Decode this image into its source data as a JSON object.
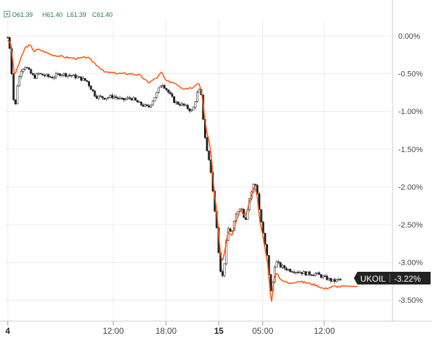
{
  "header": {
    "toggle_icon": "plus-box-icon",
    "open": "O61.39",
    "high": "H61.40",
    "low": "L61.39",
    "close": "C61.40"
  },
  "colors": {
    "compare_line": "#ff5a14",
    "candle_up": "#ffffff",
    "candle_down": "#1f1f1f",
    "candle_wick": "#2f2f2f",
    "tag_bg": "#222222",
    "grid": "#ececec",
    "ohlc_text": "#2a7a3a"
  },
  "tag": {
    "symbol": "UKOIL",
    "value": "-3.22%"
  },
  "chart_data": {
    "type": "line",
    "ylim": [
      -3.5,
      0.0
    ],
    "grid": true,
    "yticks": [
      "0.00%",
      "-0.50%",
      "-1.00%",
      "-1.50%",
      "-2.00%",
      "-2.50%",
      "-3.00%",
      "-3.50%"
    ],
    "ytick_values": [
      0,
      -0.5,
      -1.0,
      -1.5,
      -2.0,
      -2.5,
      -3.0,
      -3.5
    ],
    "xticks": [
      {
        "label": "4",
        "t": 0,
        "bold": true
      },
      {
        "label": "12:00",
        "t": 12
      },
      {
        "label": "18:00",
        "t": 18
      },
      {
        "label": "15",
        "t": 24,
        "bold": true
      },
      {
        "label": "05:00",
        "t": 29
      },
      {
        "label": "12:00",
        "t": 36
      }
    ],
    "xlim_hours": [
      0,
      40
    ],
    "series": [
      {
        "style": "line",
        "points": [
          [
            0.0,
            -0.05
          ],
          [
            0.3,
            -0.1
          ],
          [
            0.5,
            -0.25
          ],
          [
            0.8,
            -0.55
          ],
          [
            1.0,
            -0.45
          ],
          [
            1.5,
            -0.3
          ],
          [
            2.0,
            -0.15
          ],
          [
            2.5,
            -0.12
          ],
          [
            3.0,
            -0.2
          ],
          [
            3.5,
            -0.18
          ],
          [
            4.0,
            -0.2
          ],
          [
            5.0,
            -0.25
          ],
          [
            6.0,
            -0.27
          ],
          [
            7.0,
            -0.29
          ],
          [
            8.0,
            -0.3
          ],
          [
            9.0,
            -0.28
          ],
          [
            10.0,
            -0.37
          ],
          [
            11.0,
            -0.48
          ],
          [
            12.0,
            -0.49
          ],
          [
            13.0,
            -0.5
          ],
          [
            14.0,
            -0.5
          ],
          [
            15.0,
            -0.52
          ],
          [
            16.0,
            -0.62
          ],
          [
            17.0,
            -0.55
          ],
          [
            17.5,
            -0.48
          ],
          [
            18.0,
            -0.6
          ],
          [
            19.0,
            -0.62
          ],
          [
            20.0,
            -0.7
          ],
          [
            21.0,
            -0.68
          ],
          [
            21.7,
            -0.62
          ],
          [
            22.0,
            -0.7
          ],
          [
            22.3,
            -1.0
          ],
          [
            22.6,
            -1.25
          ],
          [
            23.0,
            -1.45
          ],
          [
            23.2,
            -1.65
          ],
          [
            23.5,
            -2.1
          ],
          [
            23.8,
            -2.35
          ],
          [
            24.1,
            -2.8
          ],
          [
            24.4,
            -3.0
          ],
          [
            24.7,
            -2.85
          ],
          [
            25.0,
            -2.6
          ],
          [
            25.5,
            -2.65
          ],
          [
            26.0,
            -2.45
          ],
          [
            26.5,
            -2.3
          ],
          [
            27.0,
            -2.4
          ],
          [
            27.5,
            -2.2
          ],
          [
            28.0,
            -2.0
          ],
          [
            28.3,
            -2.05
          ],
          [
            28.6,
            -2.4
          ],
          [
            29.0,
            -2.65
          ],
          [
            29.3,
            -2.85
          ],
          [
            29.6,
            -3.05
          ],
          [
            29.8,
            -3.35
          ],
          [
            30.0,
            -3.52
          ],
          [
            30.3,
            -3.2
          ],
          [
            30.6,
            -3.15
          ],
          [
            31.0,
            -3.22
          ],
          [
            32.0,
            -3.28
          ],
          [
            33.0,
            -3.25
          ],
          [
            34.0,
            -3.27
          ],
          [
            35.0,
            -3.3
          ],
          [
            36.0,
            -3.35
          ],
          [
            37.0,
            -3.32
          ],
          [
            38.0,
            -3.32
          ]
        ]
      },
      {
        "style": "candlestick",
        "points": [
          [
            0.0,
            -0.02
          ],
          [
            0.3,
            -0.2
          ],
          [
            0.5,
            -0.6
          ],
          [
            0.8,
            -1.05
          ],
          [
            1.0,
            -0.7
          ],
          [
            1.5,
            -0.45
          ],
          [
            2.0,
            -0.4
          ],
          [
            2.5,
            -0.48
          ],
          [
            3.0,
            -0.55
          ],
          [
            3.5,
            -0.5
          ],
          [
            4.0,
            -0.52
          ],
          [
            5.0,
            -0.55
          ],
          [
            6.0,
            -0.5
          ],
          [
            7.0,
            -0.52
          ],
          [
            8.0,
            -0.55
          ],
          [
            9.0,
            -0.6
          ],
          [
            10.0,
            -0.8
          ],
          [
            11.0,
            -0.82
          ],
          [
            12.0,
            -0.8
          ],
          [
            13.0,
            -0.85
          ],
          [
            14.0,
            -0.82
          ],
          [
            15.0,
            -0.9
          ],
          [
            16.0,
            -0.95
          ],
          [
            17.0,
            -0.75
          ],
          [
            17.5,
            -0.62
          ],
          [
            18.0,
            -0.7
          ],
          [
            19.0,
            -0.88
          ],
          [
            20.0,
            -0.92
          ],
          [
            21.0,
            -1.0
          ],
          [
            21.7,
            -0.7
          ],
          [
            22.0,
            -0.8
          ],
          [
            22.3,
            -1.2
          ],
          [
            22.6,
            -1.5
          ],
          [
            23.0,
            -1.7
          ],
          [
            23.2,
            -1.9
          ],
          [
            23.5,
            -2.3
          ],
          [
            23.8,
            -2.55
          ],
          [
            24.1,
            -3.05
          ],
          [
            24.4,
            -3.2
          ],
          [
            24.7,
            -2.95
          ],
          [
            25.0,
            -2.55
          ],
          [
            25.5,
            -2.6
          ],
          [
            26.0,
            -2.35
          ],
          [
            26.5,
            -2.25
          ],
          [
            27.0,
            -2.45
          ],
          [
            27.5,
            -2.15
          ],
          [
            28.0,
            -1.95
          ],
          [
            28.3,
            -2.0
          ],
          [
            28.6,
            -2.3
          ],
          [
            29.0,
            -2.6
          ],
          [
            29.3,
            -2.8
          ],
          [
            29.6,
            -3.0
          ],
          [
            29.8,
            -3.3
          ],
          [
            30.0,
            -3.45
          ],
          [
            30.3,
            -3.05
          ],
          [
            30.6,
            -3.0
          ],
          [
            31.0,
            -3.05
          ],
          [
            32.0,
            -3.1
          ],
          [
            33.0,
            -3.12
          ],
          [
            34.0,
            -3.15
          ],
          [
            35.0,
            -3.15
          ],
          [
            36.0,
            -3.2
          ],
          [
            37.0,
            -3.25
          ],
          [
            38.0,
            -3.22
          ]
        ]
      }
    ]
  }
}
